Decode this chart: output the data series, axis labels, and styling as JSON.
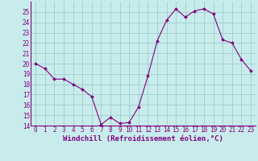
{
  "x": [
    0,
    1,
    2,
    3,
    4,
    5,
    6,
    7,
    8,
    9,
    10,
    11,
    12,
    13,
    14,
    15,
    16,
    17,
    18,
    19,
    20,
    21,
    22,
    23
  ],
  "y": [
    20.0,
    19.5,
    18.5,
    18.5,
    18.0,
    17.5,
    16.8,
    14.1,
    14.8,
    14.2,
    14.3,
    15.8,
    18.8,
    22.2,
    24.2,
    25.3,
    24.5,
    25.1,
    25.3,
    24.8,
    22.3,
    22.0,
    20.4,
    19.3
  ],
  "line_color": "#800080",
  "marker_color": "#800080",
  "bg_color": "#c8ecec",
  "grid_color": "#a0cccc",
  "axis_color": "#800080",
  "xlabel": "Windchill (Refroidissement éolien,°C)",
  "ylim": [
    14,
    26
  ],
  "xlim": [
    -0.5,
    23.5
  ],
  "yticks": [
    14,
    15,
    16,
    17,
    18,
    19,
    20,
    21,
    22,
    23,
    24,
    25
  ],
  "xticks": [
    0,
    1,
    2,
    3,
    4,
    5,
    6,
    7,
    8,
    9,
    10,
    11,
    12,
    13,
    14,
    15,
    16,
    17,
    18,
    19,
    20,
    21,
    22,
    23
  ],
  "font_color": "#800080",
  "font_size": 5.5,
  "label_font_size": 6.5
}
